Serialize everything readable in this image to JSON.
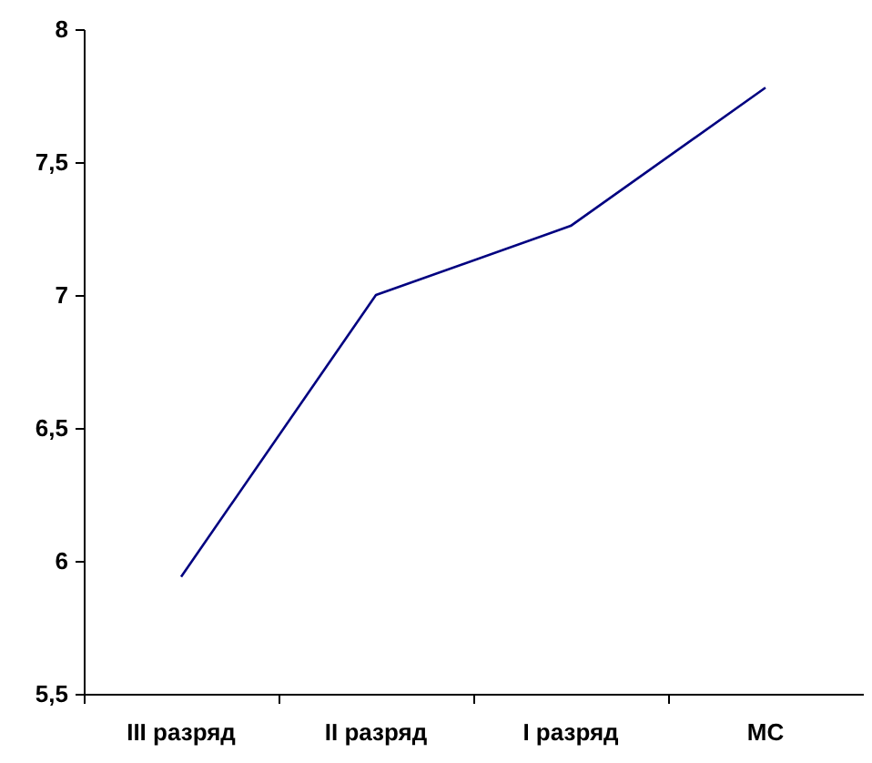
{
  "chart_data": {
    "type": "line",
    "categories": [
      "III разряд",
      "II разряд",
      "I разряд",
      "МС"
    ],
    "series": [
      {
        "color": "#000080",
        "values": [
          5.94,
          7.0,
          7.26,
          7.78
        ]
      }
    ],
    "ylim": [
      5.5,
      8
    ],
    "yticks": [
      {
        "value": 5.5,
        "label": "5,5"
      },
      6,
      {
        "value": 6.5,
        "label": "6,5"
      },
      7,
      {
        "value": 7.5,
        "label": "7,5"
      },
      8
    ],
    "marker": "none"
  }
}
